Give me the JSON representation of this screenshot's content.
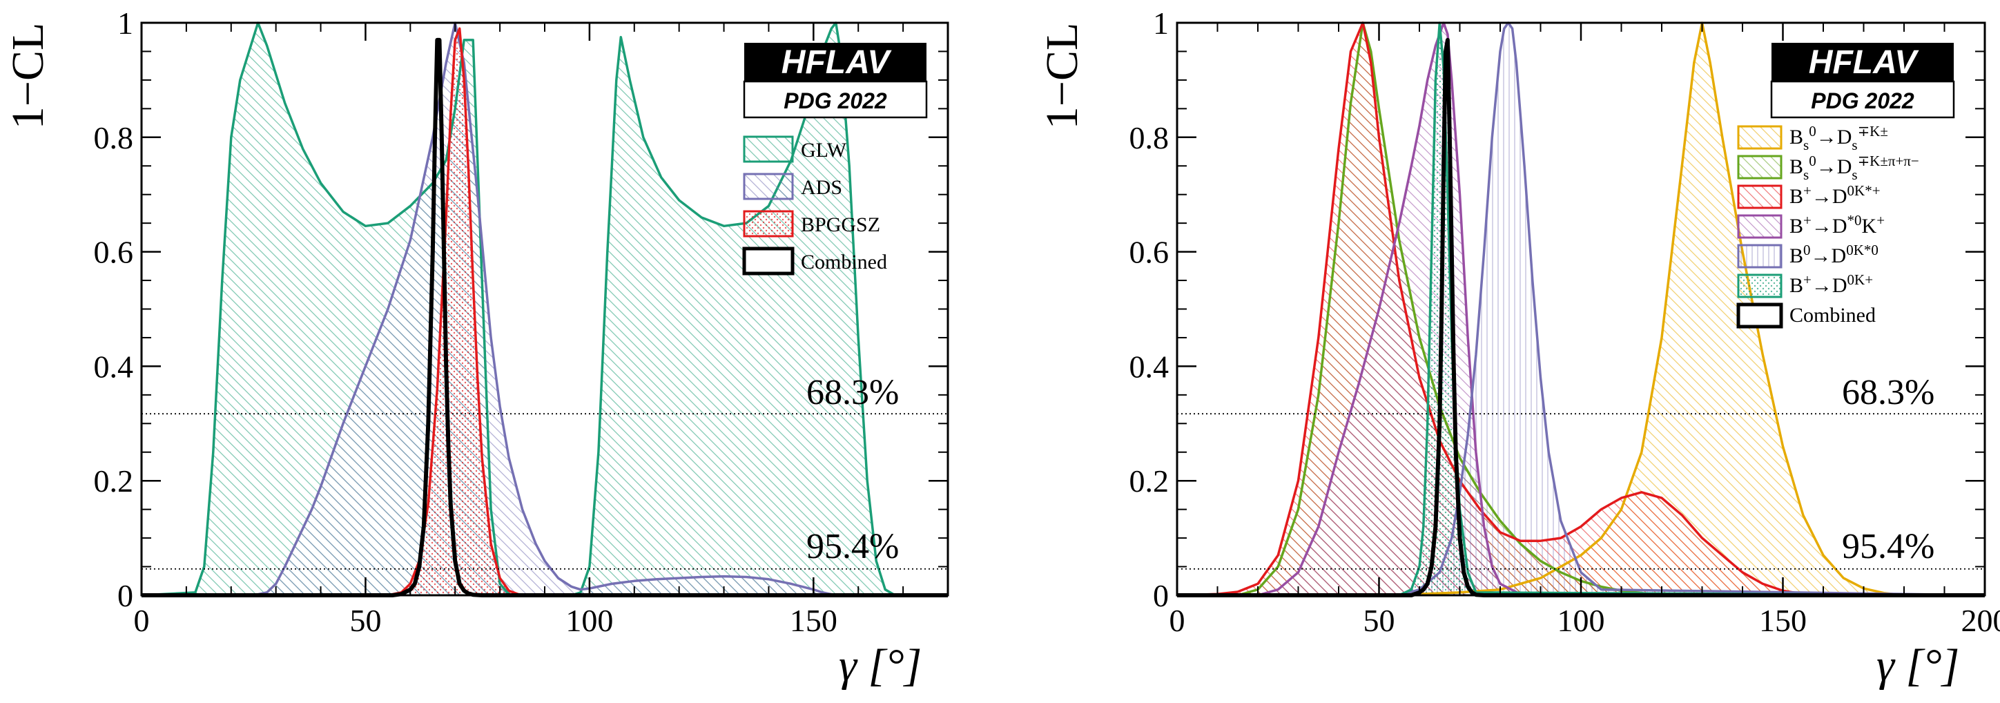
{
  "chart_data": [
    {
      "type": "line",
      "panel": "left",
      "xlabel": "γ [°]",
      "ylabel": "1−CL",
      "xlim": [
        0,
        180
      ],
      "ylim": [
        0,
        1
      ],
      "xticks": [
        "0",
        "50",
        "100",
        "150"
      ],
      "yticks": [
        "0",
        "0.2",
        "0.4",
        "0.6",
        "0.8",
        "1"
      ],
      "cl_lines": [
        {
          "label": "68.3%",
          "value": 0.317
        },
        {
          "label": "95.4%",
          "value": 0.046
        }
      ],
      "logo": {
        "title": "HFLAV",
        "subtitle": "PDG 2022"
      },
      "series": [
        {
          "name": "GLW",
          "color": "#1b9e77",
          "fill": "hatch",
          "x": [
            0,
            12,
            14,
            16,
            18,
            20,
            22,
            24,
            26,
            28,
            32,
            36,
            40,
            45,
            50,
            55,
            60,
            65,
            68,
            70,
            72,
            74,
            76,
            78,
            80,
            82,
            84,
            86,
            88,
            90,
            92,
            94,
            96,
            98,
            100,
            102,
            104,
            106,
            107,
            109,
            112,
            116,
            120,
            125,
            130,
            135,
            140,
            145,
            150,
            152,
            154,
            155,
            156,
            158,
            160,
            162,
            164,
            166,
            168,
            170,
            180
          ],
          "y": [
            0,
            0.005,
            0.05,
            0.25,
            0.55,
            0.8,
            0.9,
            0.95,
            1.0,
            0.96,
            0.86,
            0.78,
            0.72,
            0.67,
            0.645,
            0.65,
            0.68,
            0.72,
            0.76,
            0.85,
            0.97,
            0.97,
            0.55,
            0.15,
            0.02,
            0.002,
            0,
            0,
            0,
            0,
            0,
            0,
            0,
            0.005,
            0.05,
            0.25,
            0.6,
            0.9,
            0.975,
            0.9,
            0.8,
            0.73,
            0.69,
            0.66,
            0.645,
            0.65,
            0.68,
            0.76,
            0.88,
            0.95,
            0.99,
            1.0,
            0.95,
            0.75,
            0.45,
            0.2,
            0.06,
            0.01,
            0.001,
            0,
            0
          ]
        },
        {
          "name": "ADS",
          "color": "#7570b3",
          "fill": "hatch",
          "x": [
            0,
            25,
            28,
            30,
            32,
            35,
            38,
            40,
            45,
            50,
            55,
            60,
            65,
            68,
            70,
            72,
            75,
            78,
            80,
            82,
            85,
            88,
            90,
            93,
            96,
            98,
            100,
            105,
            110,
            115,
            120,
            125,
            130,
            135,
            140,
            145,
            150,
            152,
            155,
            160,
            180
          ],
          "y": [
            0,
            0,
            0.005,
            0.02,
            0.05,
            0.1,
            0.15,
            0.19,
            0.3,
            0.4,
            0.5,
            0.62,
            0.8,
            0.93,
            1.0,
            0.93,
            0.7,
            0.45,
            0.33,
            0.24,
            0.15,
            0.09,
            0.06,
            0.03,
            0.015,
            0.01,
            0.012,
            0.02,
            0.025,
            0.028,
            0.03,
            0.032,
            0.033,
            0.032,
            0.028,
            0.02,
            0.01,
            0.005,
            0,
            0,
            0
          ]
        },
        {
          "name": "BPGGSZ",
          "color": "#e31a1c",
          "fill": "dots",
          "x": [
            0,
            55,
            58,
            60,
            62,
            64,
            66,
            68,
            69,
            70,
            71,
            72,
            73,
            74,
            75,
            76,
            78,
            80,
            82,
            84,
            86,
            88,
            180
          ],
          "y": [
            0,
            0,
            0.005,
            0.02,
            0.06,
            0.16,
            0.36,
            0.66,
            0.84,
            0.97,
            0.99,
            0.9,
            0.74,
            0.55,
            0.38,
            0.24,
            0.09,
            0.03,
            0.008,
            0.002,
            0,
            0,
            0
          ]
        },
        {
          "name": "Combined",
          "color": "#000000",
          "fill": "none",
          "x": [
            0,
            56,
            58,
            60,
            61,
            62,
            63,
            64,
            65,
            65.5,
            66,
            66.5,
            67,
            67.5,
            68,
            68.5,
            69,
            70,
            71,
            72,
            73,
            74,
            76,
            180
          ],
          "y": [
            0,
            0,
            0.002,
            0.01,
            0.02,
            0.05,
            0.12,
            0.3,
            0.6,
            0.8,
            0.97,
            0.97,
            0.8,
            0.6,
            0.4,
            0.26,
            0.16,
            0.06,
            0.02,
            0.008,
            0.003,
            0.001,
            0,
            0
          ]
        }
      ]
    },
    {
      "type": "line",
      "panel": "right",
      "xlabel": "γ [°]",
      "ylabel": "1−CL",
      "xlim": [
        0,
        200
      ],
      "ylim": [
        0,
        1
      ],
      "xticks": [
        "0",
        "50",
        "100",
        "150",
        "200"
      ],
      "yticks": [
        "0",
        "0.2",
        "0.4",
        "0.6",
        "0.8",
        "1"
      ],
      "cl_lines": [
        {
          "label": "68.3%",
          "value": 0.317
        },
        {
          "label": "95.4%",
          "value": 0.046
        }
      ],
      "logo": {
        "title": "HFLAV",
        "subtitle": "PDG 2022"
      },
      "series": [
        {
          "name": "B_s^0→D_s^∓K^±",
          "color": "#e6ab02",
          "fill": "hatch",
          "x": [
            0,
            50,
            60,
            70,
            80,
            90,
            100,
            105,
            110,
            115,
            120,
            125,
            128,
            130,
            132,
            135,
            140,
            145,
            150,
            155,
            160,
            165,
            170,
            175,
            180,
            200
          ],
          "y": [
            0,
            0,
            0.002,
            0.005,
            0.01,
            0.03,
            0.07,
            0.1,
            0.15,
            0.25,
            0.45,
            0.75,
            0.93,
            1.0,
            0.93,
            0.8,
            0.6,
            0.42,
            0.26,
            0.14,
            0.07,
            0.03,
            0.012,
            0.004,
            0,
            0
          ]
        },
        {
          "name": "B_s^0→D_s^∓K^±π^+π^−",
          "color": "#66a61e",
          "fill": "hatch",
          "x": [
            0,
            15,
            20,
            25,
            30,
            35,
            40,
            43,
            46,
            48,
            50,
            55,
            60,
            65,
            70,
            75,
            80,
            85,
            90,
            95,
            100,
            105,
            110,
            120,
            200
          ],
          "y": [
            0,
            0,
            0.01,
            0.05,
            0.15,
            0.35,
            0.65,
            0.86,
            1.0,
            0.95,
            0.85,
            0.62,
            0.45,
            0.33,
            0.24,
            0.18,
            0.13,
            0.09,
            0.06,
            0.04,
            0.025,
            0.015,
            0.008,
            0,
            0
          ]
        },
        {
          "name": "B^+→D^0K^{*+}",
          "color": "#e31a1c",
          "fill": "hatch",
          "x": [
            0,
            10,
            15,
            20,
            25,
            30,
            35,
            40,
            43,
            46,
            48,
            50,
            55,
            60,
            65,
            70,
            75,
            80,
            85,
            90,
            95,
            100,
            105,
            110,
            115,
            120,
            125,
            130,
            135,
            140,
            145,
            150,
            155,
            160,
            170,
            200
          ],
          "y": [
            0,
            0.002,
            0.006,
            0.02,
            0.07,
            0.2,
            0.45,
            0.78,
            0.95,
            1.0,
            0.93,
            0.8,
            0.55,
            0.38,
            0.27,
            0.2,
            0.15,
            0.11,
            0.095,
            0.095,
            0.1,
            0.12,
            0.15,
            0.17,
            0.18,
            0.17,
            0.14,
            0.1,
            0.07,
            0.04,
            0.02,
            0.008,
            0.002,
            0,
            0,
            0
          ]
        },
        {
          "name": "B^+→D^{*0}K^+",
          "color": "#984ea3",
          "fill": "hatch",
          "x": [
            0,
            20,
            25,
            30,
            35,
            40,
            45,
            50,
            55,
            58,
            60,
            62,
            64,
            66,
            67,
            68,
            70,
            72,
            74,
            76,
            78,
            80,
            85,
            200
          ],
          "y": [
            0,
            0,
            0.01,
            0.04,
            0.12,
            0.25,
            0.37,
            0.5,
            0.65,
            0.75,
            0.82,
            0.9,
            0.96,
            1.0,
            0.98,
            0.9,
            0.7,
            0.45,
            0.25,
            0.12,
            0.05,
            0.02,
            0.002,
            0
          ]
        },
        {
          "name": "B^0→D^0K^{*0}",
          "color": "#7570b3",
          "fill": "vertical",
          "x": [
            0,
            55,
            60,
            65,
            68,
            70,
            72,
            74,
            76,
            78,
            80,
            81,
            82,
            83,
            84,
            86,
            88,
            90,
            92,
            95,
            100,
            105,
            200
          ],
          "y": [
            0,
            0,
            0.01,
            0.04,
            0.1,
            0.18,
            0.28,
            0.42,
            0.6,
            0.8,
            0.95,
            0.99,
            1.0,
            0.99,
            0.93,
            0.75,
            0.55,
            0.38,
            0.25,
            0.13,
            0.04,
            0.01,
            0
          ]
        },
        {
          "name": "B^+→D^0K^+",
          "color": "#1b9e77",
          "fill": "dots",
          "x": [
            0,
            55,
            58,
            60,
            61,
            62,
            63,
            64,
            65,
            66,
            67,
            68,
            69,
            70,
            72,
            74,
            200
          ],
          "y": [
            0,
            0,
            0.01,
            0.05,
            0.12,
            0.3,
            0.6,
            0.9,
            1.0,
            0.92,
            0.7,
            0.45,
            0.27,
            0.15,
            0.04,
            0.005,
            0
          ]
        },
        {
          "name": "Combined",
          "color": "#000000",
          "fill": "none",
          "x": [
            0,
            58,
            60,
            61,
            62,
            63,
            64,
            65,
            65.5,
            66,
            66.5,
            67,
            67.5,
            68,
            68.5,
            69,
            70,
            71,
            72,
            73,
            74,
            76,
            200
          ],
          "y": [
            0,
            0,
            0.005,
            0.01,
            0.02,
            0.05,
            0.12,
            0.3,
            0.5,
            0.75,
            0.95,
            0.97,
            0.8,
            0.6,
            0.4,
            0.25,
            0.1,
            0.04,
            0.015,
            0.005,
            0.001,
            0,
            0
          ]
        }
      ]
    }
  ],
  "legend_labels": {
    "left": [
      "GLW",
      "ADS",
      "BPGGSZ",
      "Combined"
    ],
    "right": [
      "B_s^0→D_s^∓K^±",
      "B_s^0→D_s^∓K^±π^+π^−",
      "B^+→D^0K^{*+}",
      "B^+→D^{*0}K^+",
      "B^0→D^0K^{*0}",
      "B^+→D^0K^+",
      "Combined"
    ]
  }
}
